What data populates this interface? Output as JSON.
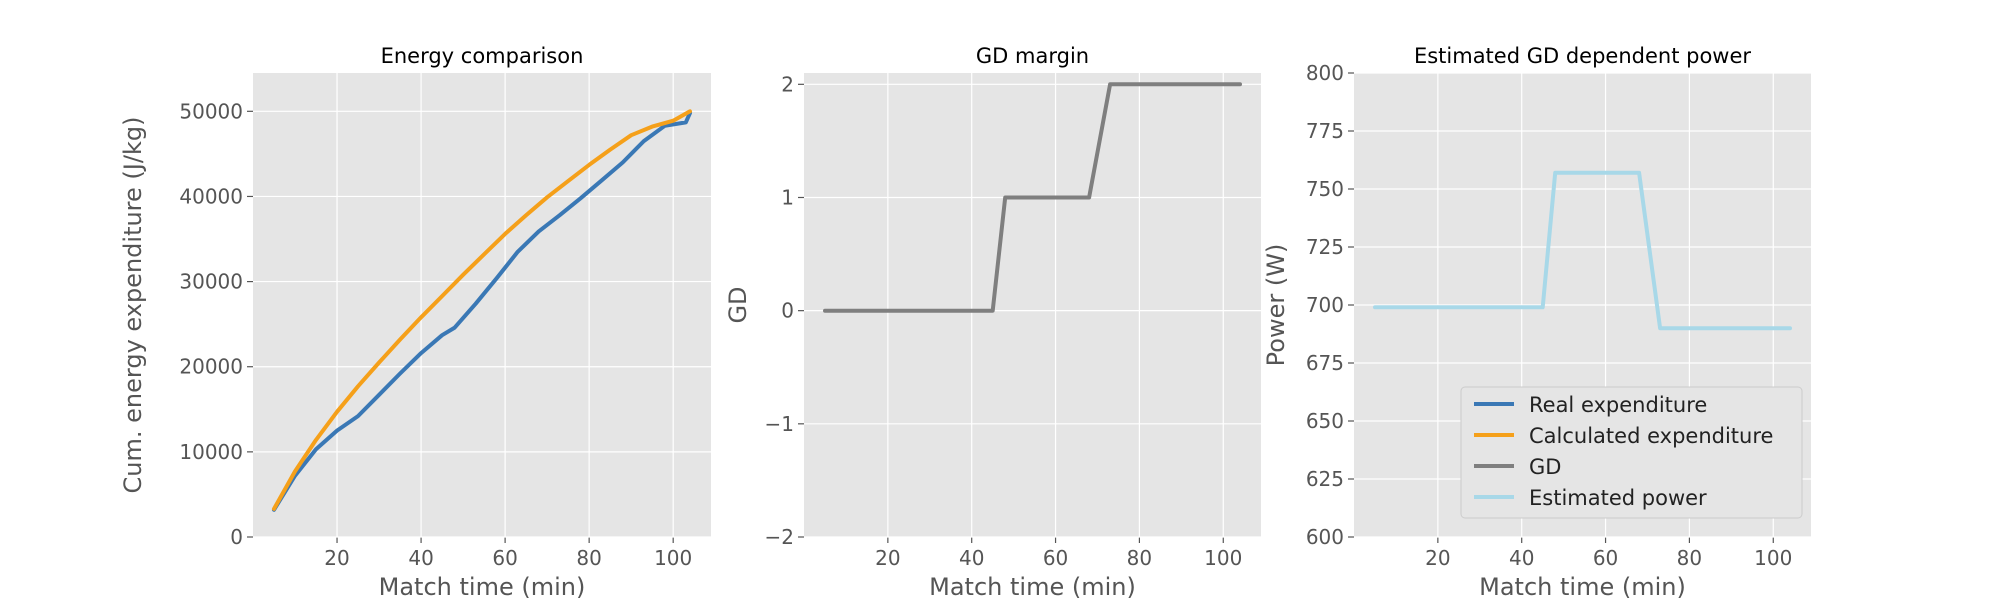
{
  "chart_data": [
    {
      "type": "line",
      "title": "Energy comparison",
      "xlabel": "Match time (min)",
      "ylabel": "Cum. energy expenditure (J/kg)",
      "xlim": [
        0,
        109
      ],
      "ylim": [
        0,
        54500
      ],
      "xticks": [
        20,
        40,
        60,
        80,
        100
      ],
      "xtick_labels": [
        "20",
        "40",
        "60",
        "80",
        "100"
      ],
      "yticks": [
        0,
        10000,
        20000,
        30000,
        40000,
        50000
      ],
      "ytick_labels": [
        "0",
        "10000",
        "20000",
        "30000",
        "40000",
        "50000"
      ],
      "grid": true,
      "series": [
        {
          "name": "Real expenditure",
          "color": "#3a78b5",
          "points": [
            [
              5,
              3200
            ],
            [
              10,
              7200
            ],
            [
              15,
              10300
            ],
            [
              20,
              12500
            ],
            [
              25,
              14200
            ],
            [
              30,
              16700
            ],
            [
              35,
              19200
            ],
            [
              40,
              21600
            ],
            [
              45,
              23700
            ],
            [
              48,
              24600
            ],
            [
              53,
              27400
            ],
            [
              58,
              30400
            ],
            [
              63,
              33500
            ],
            [
              68,
              35900
            ],
            [
              73,
              37800
            ],
            [
              78,
              39800
            ],
            [
              83,
              41900
            ],
            [
              88,
              44000
            ],
            [
              93,
              46500
            ],
            [
              98,
              48300
            ],
            [
              103,
              48700
            ],
            [
              104,
              49800
            ]
          ]
        },
        {
          "name": "Calculated expenditure",
          "color": "#f5a01a",
          "points": [
            [
              5,
              3300
            ],
            [
              10,
              7700
            ],
            [
              15,
              11400
            ],
            [
              20,
              14700
            ],
            [
              25,
              17700
            ],
            [
              30,
              20500
            ],
            [
              35,
              23200
            ],
            [
              40,
              25800
            ],
            [
              45,
              28300
            ],
            [
              50,
              30800
            ],
            [
              55,
              33200
            ],
            [
              60,
              35600
            ],
            [
              65,
              37800
            ],
            [
              70,
              39900
            ],
            [
              75,
              41800
            ],
            [
              80,
              43700
            ],
            [
              85,
              45500
            ],
            [
              90,
              47200
            ],
            [
              95,
              48200
            ],
            [
              100,
              48900
            ],
            [
              104,
              50000
            ]
          ]
        }
      ]
    },
    {
      "type": "line",
      "title": "GD margin",
      "xlabel": "Match time (min)",
      "ylabel": "GD",
      "xlim": [
        0,
        109
      ],
      "ylim": [
        -2,
        2.1
      ],
      "xticks": [
        20,
        40,
        60,
        80,
        100
      ],
      "xtick_labels": [
        "20",
        "40",
        "60",
        "80",
        "100"
      ],
      "yticks": [
        -2,
        -1,
        0,
        1,
        2
      ],
      "ytick_labels": [
        "−2",
        "−1",
        "0",
        "1",
        "2"
      ],
      "grid": true,
      "series": [
        {
          "name": "GD",
          "color": "#7f7f7f",
          "points": [
            [
              5,
              0
            ],
            [
              45,
              0
            ],
            [
              48,
              1
            ],
            [
              68,
              1
            ],
            [
              73,
              2
            ],
            [
              104,
              2
            ]
          ]
        }
      ]
    },
    {
      "type": "line",
      "title": "Estimated GD dependent power",
      "xlabel": "Match time (min)",
      "ylabel": "Power (W)",
      "xlim": [
        0,
        109
      ],
      "ylim": [
        600,
        800
      ],
      "xticks": [
        20,
        40,
        60,
        80,
        100
      ],
      "xtick_labels": [
        "20",
        "40",
        "60",
        "80",
        "100"
      ],
      "yticks": [
        600,
        625,
        650,
        675,
        700,
        725,
        750,
        775,
        800
      ],
      "ytick_labels": [
        "600",
        "625",
        "650",
        "675",
        "700",
        "725",
        "750",
        "775",
        "800"
      ],
      "grid": true,
      "legend_position": "lower-right",
      "series": [
        {
          "name": "Estimated power",
          "color": "#a8d8e8",
          "points": [
            [
              5,
              699
            ],
            [
              45,
              699
            ],
            [
              48,
              757
            ],
            [
              68,
              757
            ],
            [
              73,
              690
            ],
            [
              104,
              690
            ]
          ]
        }
      ]
    }
  ],
  "legend": {
    "entries": [
      {
        "label": "Real expenditure",
        "color": "#3a78b5"
      },
      {
        "label": "Calculated expenditure",
        "color": "#f5a01a"
      },
      {
        "label": "GD",
        "color": "#7f7f7f"
      },
      {
        "label": "Estimated power",
        "color": "#a8d8e8"
      }
    ]
  }
}
